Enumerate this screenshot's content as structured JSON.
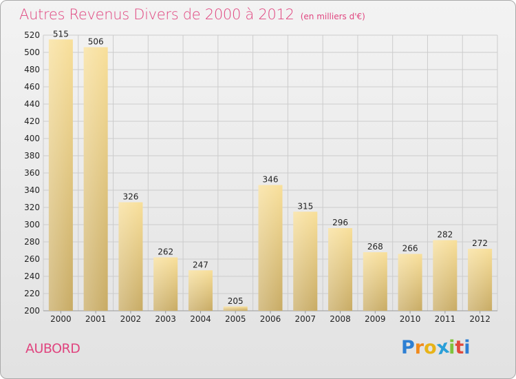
{
  "header": {
    "title": "Autres Revenus Divers de 2000 à 2012",
    "unit": "(en milliers d'€)"
  },
  "footer": {
    "city": "AUBORD",
    "logo": {
      "letters": [
        "P",
        "r",
        "o",
        "x",
        "i",
        "t",
        "i"
      ],
      "colors": [
        "#2d7fd3",
        "#f08a1c",
        "#e8b318",
        "#2a9fd8",
        "#7fc23a",
        "#e04a3b",
        "#2d7fd3"
      ]
    }
  },
  "colors": {
    "accent": "#e0457f",
    "bar_light": "#f8df9a",
    "bar_dark": "#c8ab64",
    "grid": "#cccccc"
  },
  "chart_data": {
    "type": "bar",
    "title": "Autres Revenus Divers de 2000 à 2012",
    "subtitle": "(en milliers d'€)",
    "categories": [
      "2000",
      "2001",
      "2002",
      "2003",
      "2004",
      "2005",
      "2006",
      "2007",
      "2008",
      "2009",
      "2010",
      "2011",
      "2012"
    ],
    "values": [
      515,
      506,
      326,
      262,
      247,
      205,
      346,
      315,
      296,
      268,
      266,
      282,
      272
    ],
    "ylim": [
      200,
      520
    ],
    "yticks": [
      200,
      220,
      240,
      260,
      280,
      300,
      320,
      340,
      360,
      380,
      400,
      420,
      440,
      460,
      480,
      500,
      520
    ],
    "grid": true,
    "legend": "none"
  }
}
